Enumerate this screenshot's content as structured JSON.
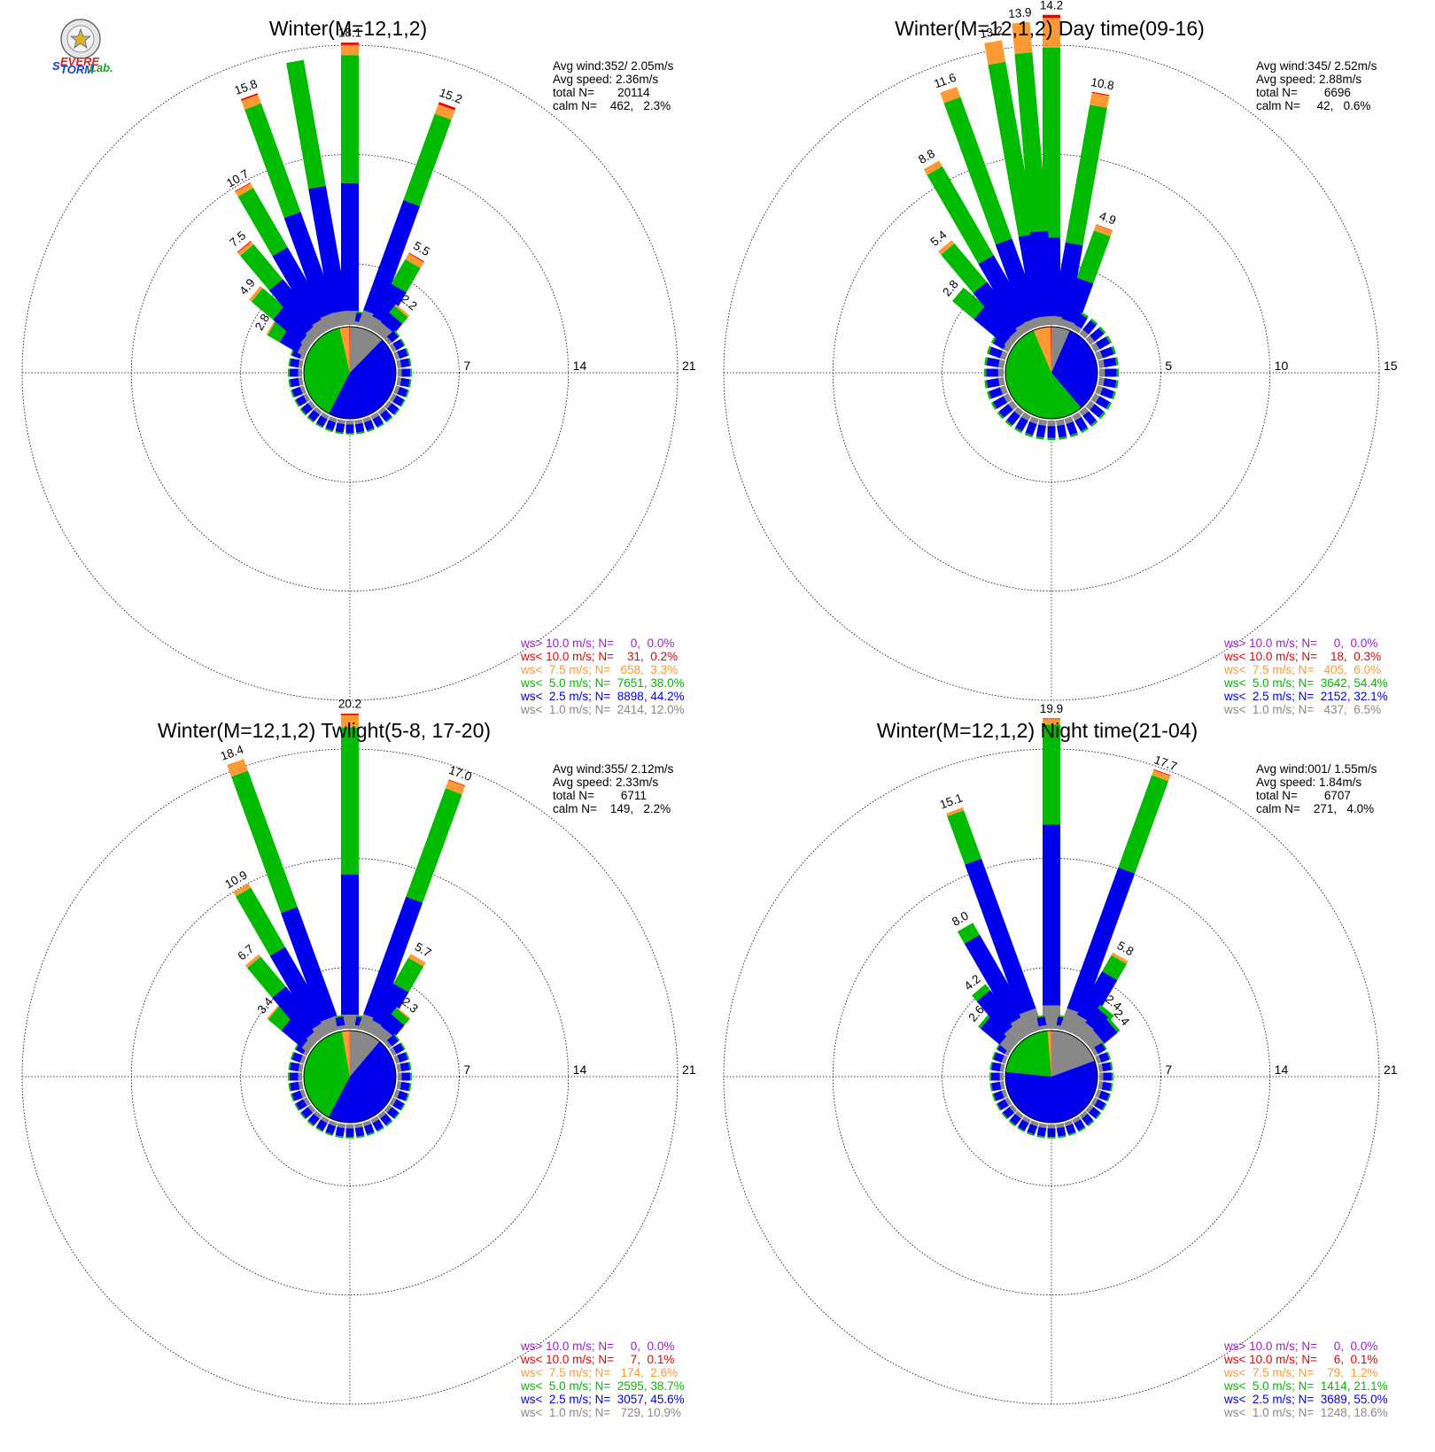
{
  "logo": {
    "text_lines": [
      "SEVERE",
      "STORM",
      "Lab."
    ]
  },
  "chart_data": [
    {
      "type": "windrose",
      "title": "Winter(M=12,1,2)",
      "rmax": 21,
      "rticks": [
        7,
        14,
        21
      ],
      "directions": 36,
      "stats": [
        "Avg wind:352/ 2.05m/s",
        "Avg speed: 2.36m/s",
        "total N=       20114",
        "calm N=    462,   2.3%"
      ],
      "legend": [
        {
          "text": "ws> 10.0 m/s; N=     0,  0.0%",
          "color": "#9b1fcf"
        },
        {
          "text": "ws< 10.0 m/s; N=    31,  0.2%",
          "color": "#ee0000"
        },
        {
          "text": "ws<  7.5 m/s; N=   658,  3.3%",
          "color": "#ff9933"
        },
        {
          "text": "ws<  5.0 m/s; N=  7651, 38.0%",
          "color": "#00bb00"
        },
        {
          "text": "ws<  2.5 m/s; N=  8898, 44.2%",
          "color": "#0000ee"
        },
        {
          "text": "ws<  1.0 m/s; N=  2414, 12.0%",
          "color": "#888888"
        }
      ],
      "pie": [
        12.0,
        44.2,
        38.0,
        3.3,
        0.2,
        0.0
      ],
      "bars": [
        {
          "dir": 0,
          "segments": [
            0.9,
            8.2,
            8.2,
            0.65,
            0.15
          ],
          "label": "18.1"
        },
        {
          "dir": 20,
          "segments": [
            1.0,
            7.5,
            5.9,
            0.65,
            0.15
          ],
          "label": "15.2"
        },
        {
          "dir": 30,
          "segments": [
            0.8,
            2.4,
            1.8,
            0.45,
            0.05
          ],
          "label": "5.5"
        },
        {
          "dir": 40,
          "segments": [
            0.7,
            0.8,
            0.55,
            0.15
          ],
          "label": "2.2"
        },
        {
          "dir": 300,
          "segments": [
            0.5,
            1.3,
            0.9,
            0.1
          ],
          "label": "2.8"
        },
        {
          "dir": 310,
          "segments": [
            0.6,
            2.3,
            1.8,
            0.2
          ],
          "label": "4.9"
        },
        {
          "dir": 320,
          "segments": [
            0.7,
            3.6,
            2.9,
            0.25,
            0.05
          ],
          "label": "7.5"
        },
        {
          "dir": 330,
          "segments": [
            0.8,
            5.1,
            4.4,
            0.35,
            0.05
          ],
          "label": "10.7"
        },
        {
          "dir": 340,
          "segments": [
            0.9,
            6.8,
            7.4,
            0.6,
            0.1
          ],
          "label": "15.8"
        },
        {
          "dir": 350,
          "segments": [
            0.9,
            8.1,
            8.2,
            0.0,
            0.0
          ],
          "label": ""
        }
      ]
    },
    {
      "type": "windrose",
      "title": "Winter(M=12,1,2) Day time(09-16)",
      "rmax": 15,
      "rticks": [
        5,
        10,
        15
      ],
      "directions": 36,
      "stats": [
        "Avg wind:345/ 2.52m/s",
        "Avg speed: 2.88m/s",
        "total N=        6696",
        "calm N=     42,   0.6%"
      ],
      "legend": [
        {
          "text": "ws> 10.0 m/s; N=     0,  0.0%",
          "color": "#9b1fcf"
        },
        {
          "text": "ws< 10.0 m/s; N=    18,  0.3%",
          "color": "#ee0000"
        },
        {
          "text": "ws<  7.5 m/s; N=   405,  6.0%",
          "color": "#ff9933"
        },
        {
          "text": "ws<  5.0 m/s; N=  3642, 54.4%",
          "color": "#00bb00"
        },
        {
          "text": "ws<  2.5 m/s; N=  2152, 32.1%",
          "color": "#0000ee"
        },
        {
          "text": "ws<  1.0 m/s; N=   437,  6.5%",
          "color": "#888888"
        }
      ],
      "pie": [
        6.5,
        32.1,
        54.4,
        6.0,
        0.3,
        0.0
      ],
      "bars": [
        {
          "dir": 0,
          "segments": [
            0.4,
            3.6,
            8.7,
            1.35,
            0.15
          ],
          "label": "14.2"
        },
        {
          "dir": 10,
          "segments": [
            0.4,
            3.4,
            6.4,
            0.55,
            0.05
          ],
          "label": "10.8"
        },
        {
          "dir": 20,
          "segments": [
            0.3,
            2.0,
            2.3,
            0.28,
            0.02
          ],
          "label": "4.9"
        },
        {
          "dir": 310,
          "segments": [
            0.3,
            1.8,
            1.3,
            0.0
          ],
          "label": "2.8"
        },
        {
          "dir": 320,
          "segments": [
            0.3,
            2.6,
            2.3,
            0.2
          ],
          "label": "5.4"
        },
        {
          "dir": 330,
          "segments": [
            0.4,
            3.4,
            4.7,
            0.3
          ],
          "label": "8.8"
        },
        {
          "dir": 340,
          "segments": [
            0.4,
            3.8,
            6.9,
            0.5
          ],
          "label": "11.6"
        },
        {
          "dir": 350,
          "segments": [
            0.4,
            3.8,
            8.0,
            1.0
          ],
          "label": "13.2"
        },
        {
          "dir": 355,
          "segments": [
            0.4,
            3.9,
            8.2,
            1.4
          ],
          "label": "13.9"
        }
      ]
    },
    {
      "type": "windrose",
      "title": "Winter(M=12,1,2) Twlight(5-8, 17-20)",
      "rmax": 21,
      "rticks": [
        7,
        14,
        21
      ],
      "directions": 36,
      "stats": [
        "Avg wind:355/ 2.12m/s",
        "Avg speed: 2.33m/s",
        "total N=        6711",
        "calm N=    149,   2.2%"
      ],
      "legend": [
        {
          "text": "ws> 10.0 m/s; N=     0,  0.0%",
          "color": "#9b1fcf"
        },
        {
          "text": "ws< 10.0 m/s; N=     7,  0.1%",
          "color": "#ee0000"
        },
        {
          "text": "ws<  7.5 m/s; N=   174,  2.6%",
          "color": "#ff9933"
        },
        {
          "text": "ws<  5.0 m/s; N=  2595, 38.7%",
          "color": "#00bb00"
        },
        {
          "text": "ws<  2.5 m/s; N=  3057, 45.6%",
          "color": "#0000ee"
        },
        {
          "text": "ws<  1.0 m/s; N=   729, 10.9%",
          "color": "#888888"
        }
      ],
      "pie": [
        10.9,
        45.6,
        38.7,
        2.6,
        0.1,
        0.0
      ],
      "bars": [
        {
          "dir": 0,
          "segments": [
            0.9,
            9.0,
            9.4,
            0.8,
            0.1
          ],
          "label": "20.2"
        },
        {
          "dir": 20,
          "segments": [
            1.0,
            8.0,
            7.4,
            0.55,
            0.05
          ],
          "label": "17.0"
        },
        {
          "dir": 30,
          "segments": [
            0.8,
            2.7,
            1.9,
            0.3
          ],
          "label": "5.7"
        },
        {
          "dir": 40,
          "segments": [
            0.7,
            1.0,
            0.5,
            0.1
          ],
          "label": "2.3"
        },
        {
          "dir": 310,
          "segments": [
            0.5,
            1.7,
            1.1,
            0.1
          ],
          "label": "3.4"
        },
        {
          "dir": 320,
          "segments": [
            0.6,
            3.4,
            2.5,
            0.2
          ],
          "label": "6.7"
        },
        {
          "dir": 330,
          "segments": [
            0.8,
            5.4,
            4.4,
            0.3
          ],
          "label": "10.9"
        },
        {
          "dir": 340,
          "segments": [
            0.9,
            7.4,
            9.3,
            0.8
          ],
          "label": "18.4"
        }
      ]
    },
    {
      "type": "windrose",
      "title": "Winter(M=12,1,2) Night time(21-04)",
      "rmax": 21,
      "rticks": [
        7,
        14,
        21
      ],
      "directions": 36,
      "stats": [
        "Avg wind:001/ 1.55m/s",
        "Avg speed: 1.84m/s",
        "total N=        6707",
        "calm N=    271,   4.0%"
      ],
      "legend": [
        {
          "text": "ws> 10.0 m/s; N=     0,  0.0%",
          "color": "#9b1fcf"
        },
        {
          "text": "ws< 10.0 m/s; N=     6,  0.1%",
          "color": "#ee0000"
        },
        {
          "text": "ws<  7.5 m/s; N=    79,  1.2%",
          "color": "#ff9933"
        },
        {
          "text": "ws<  5.0 m/s; N=  1414, 21.1%",
          "color": "#00bb00"
        },
        {
          "text": "ws<  2.5 m/s; N=  3689, 55.0%",
          "color": "#0000ee"
        },
        {
          "text": "ws<  1.0 m/s; N=  1248, 18.6%",
          "color": "#888888"
        }
      ],
      "pie": [
        18.6,
        55.0,
        21.1,
        1.2,
        0.1,
        0.0
      ],
      "bars": [
        {
          "dir": 0,
          "segments": [
            1.5,
            11.6,
            6.4,
            0.35,
            0.05
          ],
          "label": "19.9"
        },
        {
          "dir": 20,
          "segments": [
            1.4,
            9.6,
            6.3,
            0.35,
            0.05
          ],
          "label": "17.7"
        },
        {
          "dir": 30,
          "segments": [
            1.2,
            3.2,
            1.2,
            0.2
          ],
          "label": "5.8"
        },
        {
          "dir": 40,
          "segments": [
            1.0,
            1.2,
            0.3
          ],
          "label": "2.4"
        },
        {
          "dir": 50,
          "segments": [
            0.9,
            1.1,
            0.2
          ],
          "label": "2.4"
        },
        {
          "dir": 310,
          "segments": [
            0.8,
            1.6,
            0.2
          ],
          "label": "2.6"
        },
        {
          "dir": 320,
          "segments": [
            1.0,
            2.7,
            0.5
          ],
          "label": "4.2"
        },
        {
          "dir": 330,
          "segments": [
            1.2,
            5.9,
            0.9
          ],
          "label": "8.0"
        },
        {
          "dir": 340,
          "segments": [
            1.4,
            10.2,
            3.3,
            0.2
          ],
          "label": "15.1"
        }
      ]
    }
  ]
}
